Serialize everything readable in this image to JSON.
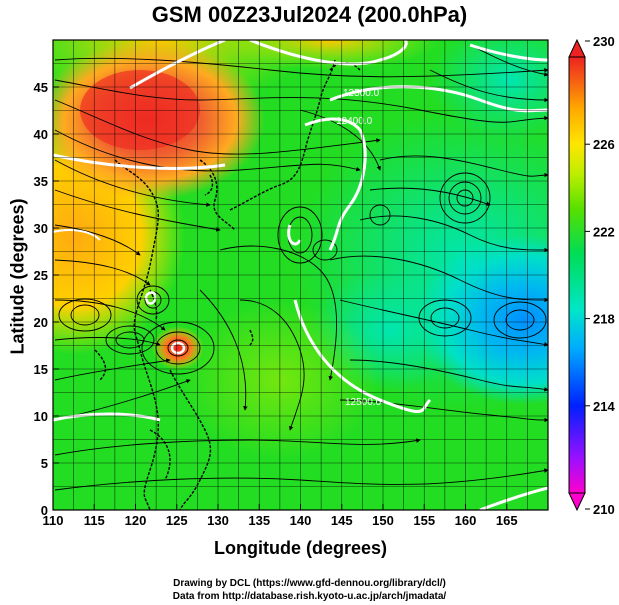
{
  "title": "GSM 00Z23Jul2024 (200.0hPa)",
  "xlabel": "Longitude (degrees)",
  "ylabel": "Latitude  (degrees)",
  "credits": {
    "line1": "Drawing by DCL (https://www.gfd-dennou.org/library/dcl/)",
    "line2": "Data from http://database.rish.kyoto-u.ac.jp/arch/jmadata/"
  },
  "chart_data": {
    "type": "heatmap",
    "x_range": [
      110,
      170
    ],
    "y_range": [
      0,
      50
    ],
    "x_ticks": [
      110,
      115,
      120,
      125,
      130,
      135,
      140,
      145,
      150,
      155,
      160,
      165
    ],
    "y_ticks": [
      0,
      5,
      10,
      15,
      20,
      25,
      30,
      35,
      40,
      45
    ],
    "grid": true,
    "colorbar": {
      "min": 210,
      "max": 230,
      "ticks": [
        210,
        214,
        218,
        222,
        226,
        230
      ],
      "colors": [
        "#ff00cc",
        "#7a18ff",
        "#0020ff",
        "#00aaff",
        "#00e6c8",
        "#00dd55",
        "#33dd00",
        "#99ee00",
        "#ffee00",
        "#ffaa00",
        "#ff6600",
        "#ee2222"
      ]
    },
    "contour_labels": [
      {
        "text": "12500.0",
        "lon": 146.5,
        "lat": 43.8
      },
      {
        "text": "12400.0",
        "lon": 145.5,
        "lat": 40.5
      },
      {
        "text": "12500.0",
        "lon": 148.0,
        "lat": 11.2
      }
    ],
    "warm_centers": [
      {
        "lon": 119,
        "lat": 43,
        "value": 229
      },
      {
        "lon": 125,
        "lat": 19.5,
        "value": 229
      }
    ],
    "cold_center": {
      "lon": 167,
      "lat": 23,
      "value": 217
    }
  },
  "colors": {
    "background": "#ffffff",
    "contour": "#ffffff",
    "streamline": "#000000"
  }
}
